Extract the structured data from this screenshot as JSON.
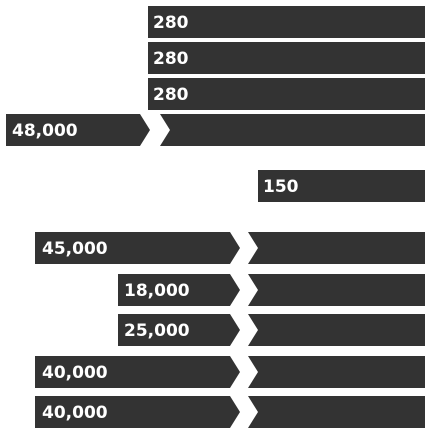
{
  "rows": [
    {
      "right": "280"
    },
    {
      "right": "280"
    },
    {
      "right": "280"
    },
    {
      "left": "48,000"
    },
    {
      "right": "150"
    },
    {
      "left": "45,000"
    },
    {
      "left": "18,000"
    },
    {
      "left": "25,000"
    },
    {
      "left": "40,000"
    },
    {
      "left": "40,000"
    }
  ]
}
